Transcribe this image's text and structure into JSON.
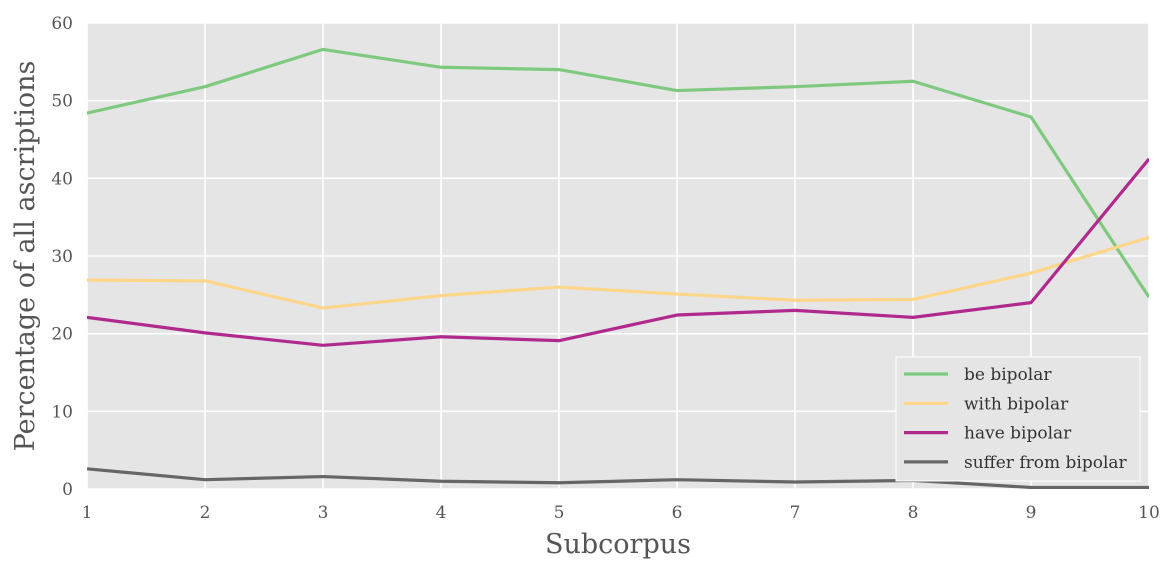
{
  "chart_data": {
    "type": "line",
    "title": "",
    "xlabel": "Subcorpus",
    "ylabel": "Percentage of all ascriptions",
    "x": [
      1,
      2,
      3,
      4,
      5,
      6,
      7,
      8,
      9,
      10
    ],
    "xlim": [
      1,
      10
    ],
    "ylim": [
      0,
      60
    ],
    "xticks": [
      "1",
      "2",
      "3",
      "4",
      "5",
      "6",
      "7",
      "8",
      "9",
      "10"
    ],
    "yticks": [
      "0",
      "10",
      "20",
      "30",
      "40",
      "50",
      "60"
    ],
    "grid": true,
    "background": "#e5e5e5",
    "legend_position": "lower-right",
    "series": [
      {
        "name": "be bipolar",
        "color": "#7fc97f",
        "values": [
          48.4,
          51.8,
          56.6,
          54.3,
          54.0,
          51.3,
          51.8,
          52.5,
          47.9,
          24.7
        ]
      },
      {
        "name": "with bipolar",
        "color": "#fdd68a",
        "values": [
          26.9,
          26.8,
          23.3,
          24.9,
          26.0,
          25.1,
          24.3,
          24.4,
          27.8,
          32.4
        ]
      },
      {
        "name": "have bipolar",
        "color": "#b02a8e",
        "values": [
          22.1,
          20.1,
          18.5,
          19.6,
          19.1,
          22.4,
          23.0,
          22.1,
          24.0,
          42.5
        ]
      },
      {
        "name": "suffer from bipolar",
        "color": "#666666",
        "values": [
          2.6,
          1.2,
          1.6,
          1.0,
          0.8,
          1.2,
          0.9,
          1.1,
          0.2,
          0.2
        ]
      }
    ]
  }
}
